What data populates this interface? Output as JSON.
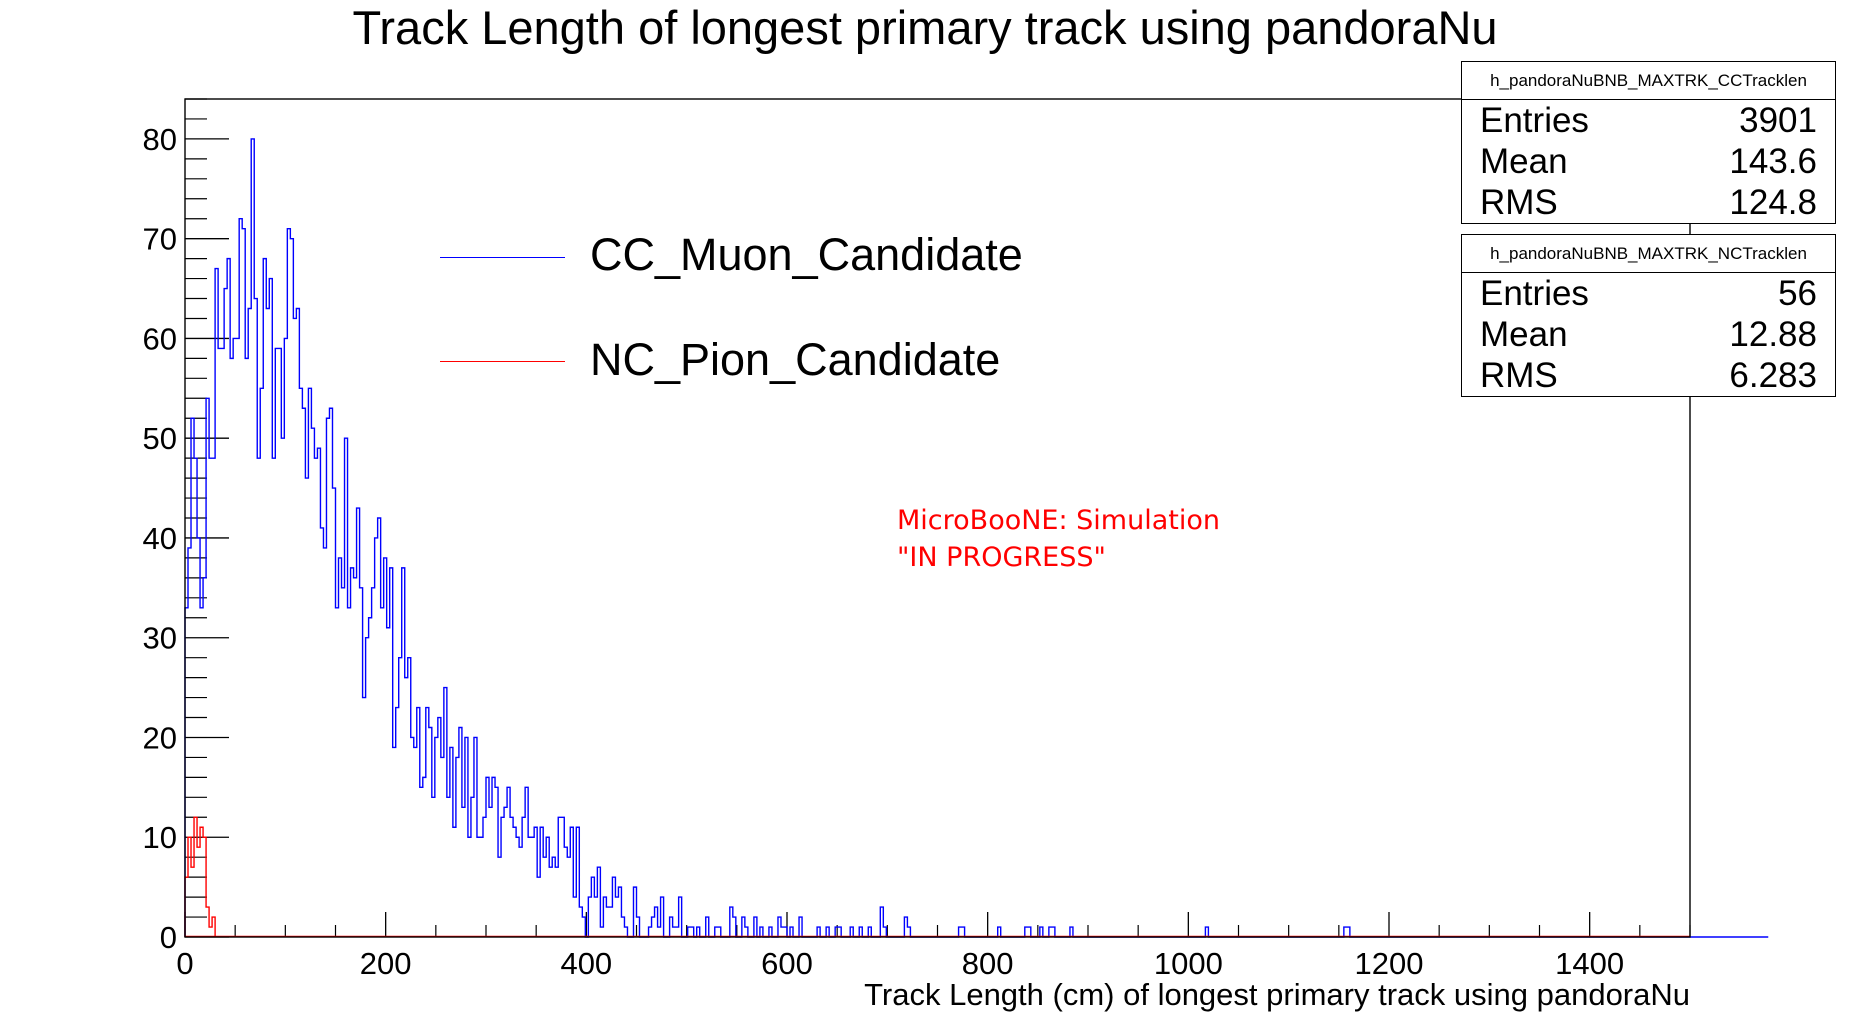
{
  "chart_data": {
    "type": "step-histogram",
    "title": "Track Length of longest primary track using pandoraNu",
    "xlabel": "Track Length (cm) of longest primary track using pandoraNu",
    "ylabel": "",
    "xlim": [
      0,
      1500
    ],
    "ylim": [
      0,
      84
    ],
    "bin_width": 3,
    "x_ticks": [
      "0",
      "200",
      "400",
      "600",
      "800",
      "1000",
      "1200",
      "1400"
    ],
    "y_ticks": [
      "0",
      "10",
      "20",
      "30",
      "40",
      "50",
      "60",
      "70",
      "80"
    ],
    "grid": false,
    "legend_position": "upper-center",
    "series": [
      {
        "name": "CC_Muon_Candidate",
        "color": "#0000ff",
        "x_start": 0,
        "values": [
          33,
          39,
          52,
          48,
          40,
          33,
          36,
          54,
          48,
          48,
          67,
          59,
          59,
          65,
          68,
          58,
          60,
          60,
          72,
          71,
          58,
          63,
          80,
          64,
          48,
          55,
          68,
          63,
          66,
          48,
          59,
          59,
          50,
          60,
          71,
          70,
          62,
          63,
          55,
          53,
          46,
          55,
          51,
          48,
          49,
          41,
          39,
          52,
          53,
          45,
          33,
          38,
          35,
          50,
          33,
          37,
          36,
          43,
          35,
          24,
          30,
          32,
          35,
          40,
          42,
          33,
          38,
          31,
          37,
          19,
          23,
          28,
          37,
          26,
          28,
          20,
          19,
          23,
          15,
          16,
          23,
          21,
          14,
          20,
          22,
          18,
          25,
          14,
          19,
          11,
          18,
          21,
          13,
          20,
          10,
          14,
          20,
          10,
          10,
          12,
          16,
          13,
          16,
          15,
          8,
          12,
          13,
          15,
          12,
          11,
          10,
          9,
          12,
          15,
          10,
          10,
          11,
          6,
          11,
          8,
          10,
          7,
          8,
          7,
          12,
          12,
          9,
          8,
          11,
          4,
          11,
          3,
          2,
          0,
          4,
          6,
          4,
          7,
          1,
          4,
          3,
          3,
          6,
          4,
          5,
          2,
          1,
          0,
          0,
          5,
          2,
          0,
          0,
          0,
          1,
          2,
          3,
          1,
          4,
          0,
          0,
          2,
          1,
          1,
          4,
          0,
          0,
          1,
          1,
          0,
          1,
          0,
          0,
          2,
          0,
          0,
          1,
          1,
          0,
          0,
          0,
          3,
          2,
          0,
          0,
          2,
          1,
          0,
          0,
          2,
          0,
          1,
          0,
          0,
          1,
          0,
          0,
          2,
          1,
          1,
          0,
          1,
          0,
          0,
          2,
          0,
          0,
          0,
          0,
          0,
          1,
          0,
          0,
          1,
          0,
          0,
          1,
          1,
          0,
          0,
          0,
          1,
          0,
          0,
          1,
          0,
          0,
          1,
          0,
          0,
          0,
          3,
          1,
          0,
          0,
          0,
          0,
          0,
          0,
          2,
          1,
          0,
          0,
          0,
          0,
          0,
          0,
          0,
          0,
          0,
          0,
          0,
          0,
          0,
          0,
          0,
          0,
          1,
          1,
          0,
          0,
          0,
          0,
          0,
          0,
          0,
          0,
          0,
          0,
          0,
          1,
          0,
          0,
          0,
          0,
          0,
          0,
          0,
          0,
          1,
          1,
          0,
          0,
          0,
          1,
          0,
          0,
          1,
          1,
          0,
          0,
          0,
          0,
          0,
          1,
          0,
          0,
          0,
          0,
          0,
          0,
          0,
          0,
          0,
          0,
          0,
          0,
          0,
          0,
          0,
          0,
          0,
          0,
          0,
          0,
          0,
          0,
          0,
          0,
          0,
          0,
          0,
          0,
          0,
          0,
          0,
          0,
          0,
          0,
          0,
          0,
          0,
          0,
          0,
          0,
          0,
          0,
          0,
          0,
          1,
          0,
          0,
          0,
          0,
          0,
          0,
          0,
          0,
          0,
          0,
          0,
          0,
          0,
          0,
          0,
          0,
          0,
          0,
          0,
          0,
          0,
          0,
          0,
          0,
          0,
          0,
          0,
          0,
          0,
          0,
          0,
          0,
          0,
          0,
          0,
          0,
          0,
          0,
          0,
          0,
          0,
          0,
          0,
          0,
          0,
          1,
          1,
          0,
          0,
          0,
          0,
          0,
          0,
          0,
          0,
          0,
          0,
          0,
          0,
          0,
          0,
          0,
          0,
          0,
          0,
          0,
          0,
          0,
          0,
          0,
          0,
          0,
          0,
          0,
          0,
          0,
          0,
          0,
          0,
          0,
          0,
          0,
          0,
          0,
          0,
          0,
          0,
          0,
          0,
          0,
          0,
          0,
          0,
          0,
          0,
          0,
          0,
          0,
          0,
          0,
          0,
          0,
          0,
          0,
          0,
          0,
          0,
          0,
          0,
          0,
          0,
          0,
          0,
          0,
          0,
          0,
          0,
          0,
          0,
          0,
          0,
          0,
          0,
          0,
          0,
          0,
          0,
          0,
          0,
          0,
          0,
          0,
          0,
          0,
          0,
          0,
          0,
          0,
          0,
          0,
          0,
          0,
          0,
          0,
          0,
          0,
          0,
          0,
          0,
          0,
          0,
          0,
          0,
          0,
          0,
          0,
          0,
          0,
          0,
          0,
          0,
          0,
          0,
          0,
          0,
          0,
          0,
          0,
          0,
          0,
          0,
          0,
          0,
          0,
          0,
          0,
          0,
          0,
          0,
          0,
          0,
          0,
          0,
          0,
          0,
          0
        ]
      },
      {
        "name": "NC_Pion_Candidate",
        "color": "#ff0000",
        "x_start": 0,
        "values": [
          6,
          10,
          7,
          12,
          9,
          11,
          10,
          3,
          1,
          2
        ]
      }
    ],
    "stat_boxes": [
      {
        "name": "h_pandoraNuBNB_MAXTRK_CCTracklen",
        "entries": "3901",
        "mean": "143.6",
        "rms": "124.8"
      },
      {
        "name": "h_pandoraNuBNB_MAXTRK_NCTracklen",
        "entries": "56",
        "mean": "12.88",
        "rms": "6.283"
      }
    ],
    "stat_labels": {
      "entries": "Entries",
      "mean": "Mean",
      "rms": "RMS"
    },
    "annotations": [
      "MicroBooNE: Simulation",
      "\"IN PROGRESS\""
    ]
  }
}
